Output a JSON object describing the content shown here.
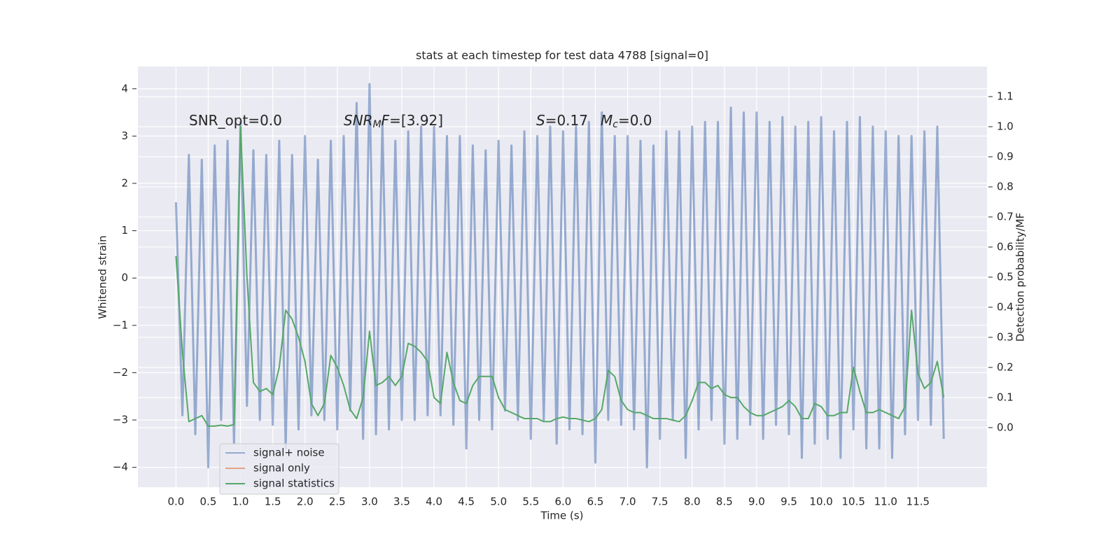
{
  "chart_data": {
    "type": "line",
    "title": "stats at each timestep for test data 4788 [signal=0]",
    "xlabel": "Time (s)",
    "ylabel": "Whitened strain",
    "y2label": "Detection probability/MF",
    "x": [
      0,
      0.1,
      0.2,
      0.3,
      0.4,
      0.5,
      0.6,
      0.7,
      0.8,
      0.9,
      1,
      1.1,
      1.2,
      1.3,
      1.4,
      1.5,
      1.6,
      1.7,
      1.8,
      1.9,
      2,
      2.1,
      2.2,
      2.3,
      2.4,
      2.5,
      2.6,
      2.7,
      2.8,
      2.9,
      3,
      3.1,
      3.2,
      3.3,
      3.4,
      3.5,
      3.6,
      3.7,
      3.8,
      3.9,
      4,
      4.1,
      4.2,
      4.3,
      4.4,
      4.5,
      4.6,
      4.7,
      4.8,
      4.9,
      5,
      5.1,
      5.2,
      5.3,
      5.4,
      5.5,
      5.6,
      5.7,
      5.8,
      5.9,
      6,
      6.1,
      6.2,
      6.3,
      6.4,
      6.5,
      6.6,
      6.7,
      6.8,
      6.9,
      7,
      7.1,
      7.2,
      7.3,
      7.4,
      7.5,
      7.6,
      7.7,
      7.8,
      7.9,
      8,
      8.1,
      8.2,
      8.3,
      8.4,
      8.5,
      8.6,
      8.7,
      8.8,
      8.9,
      9,
      9.1,
      9.2,
      9.3,
      9.4,
      9.5,
      9.6,
      9.7,
      9.8,
      9.9,
      10,
      10.1,
      10.2,
      10.3,
      10.4,
      10.5,
      10.6,
      10.7,
      10.8,
      10.9,
      11,
      11.1,
      11.2,
      11.3,
      11.4,
      11.5,
      11.6,
      11.7,
      11.8,
      11.9
    ],
    "series": [
      {
        "name": "signal+ noise",
        "color": "#4c72b0",
        "opacity": 0.55,
        "values": [
          1.6,
          -2.9,
          2.6,
          -3.3,
          2.5,
          -4.0,
          2.8,
          -3.0,
          2.9,
          -3.5,
          3.3,
          -2.7,
          2.7,
          -3.0,
          2.6,
          -3.1,
          2.9,
          -3.6,
          2.6,
          -3.2,
          3.0,
          -2.9,
          2.5,
          -3.0,
          2.9,
          -3.2,
          3.0,
          -2.8,
          3.7,
          -3.4,
          4.1,
          -3.3,
          3.3,
          -3.2,
          2.9,
          -3.0,
          3.1,
          -3.0,
          3.2,
          -2.9,
          3.2,
          -2.9,
          3.0,
          -3.1,
          3.0,
          -3.6,
          2.8,
          -3.0,
          2.7,
          -3.2,
          2.9,
          -2.8,
          2.8,
          -3.0,
          3.1,
          -3.4,
          3.0,
          -3.0,
          3.2,
          -3.5,
          3.1,
          -3.2,
          3.2,
          -3.3,
          3.3,
          -3.9,
          3.5,
          -3.0,
          3.0,
          -3.1,
          3.0,
          -3.2,
          2.9,
          -4.0,
          2.8,
          -3.4,
          3.1,
          -3.0,
          3.1,
          -3.8,
          3.2,
          -3.2,
          3.3,
          -3.0,
          3.3,
          -3.5,
          3.6,
          -3.4,
          3.5,
          -3.1,
          3.5,
          -3.4,
          3.3,
          -3.1,
          3.4,
          -3.3,
          3.2,
          -3.8,
          3.3,
          -3.5,
          3.4,
          -3.4,
          3.1,
          -3.8,
          3.3,
          -3.2,
          3.4,
          -3.6,
          3.2,
          -3.6,
          3.1,
          -3.8,
          3.0,
          -3.3,
          3.0,
          -3.0,
          3.1,
          -3.1,
          3.2,
          -3.4
        ]
      },
      {
        "name": "signal only",
        "color": "#dd8452",
        "opacity": 1,
        "values": [
          null,
          null,
          null,
          null,
          null,
          null,
          null,
          null,
          null,
          null,
          null,
          null,
          null,
          null,
          null,
          null,
          null,
          null,
          null,
          null,
          null,
          null,
          null,
          null,
          null,
          null,
          null,
          null,
          null,
          null,
          null,
          null,
          null,
          null,
          null,
          null,
          null,
          null,
          null,
          null,
          null,
          null,
          null,
          null,
          null,
          null,
          null,
          null,
          null,
          null,
          null,
          null,
          null,
          null,
          null,
          null,
          null,
          null,
          null,
          null,
          null,
          null,
          null,
          null,
          null,
          null,
          null,
          null,
          null,
          null,
          null,
          null,
          null,
          null,
          null,
          null,
          null,
          null,
          null,
          null,
          null,
          null,
          null,
          null,
          null,
          null,
          null,
          null,
          null,
          null,
          null,
          null,
          null,
          null,
          null,
          null,
          null,
          null,
          null,
          null,
          null,
          null,
          null,
          null,
          null,
          null,
          null,
          null,
          null,
          null,
          null,
          null,
          null,
          null,
          null,
          null,
          null,
          null,
          null,
          null
        ]
      },
      {
        "name": "signal statistics",
        "color": "#55a868",
        "opacity": 1,
        "axis": "y2",
        "values": [
          0.57,
          0.25,
          0.02,
          0.03,
          0.04,
          0.005,
          0.005,
          0.008,
          0.005,
          0.01,
          1.0,
          0.5,
          0.15,
          0.12,
          0.13,
          0.11,
          0.2,
          0.39,
          0.36,
          0.3,
          0.22,
          0.08,
          0.04,
          0.08,
          0.24,
          0.2,
          0.14,
          0.06,
          0.03,
          0.1,
          0.32,
          0.14,
          0.15,
          0.17,
          0.14,
          0.17,
          0.28,
          0.27,
          0.25,
          0.22,
          0.1,
          0.08,
          0.25,
          0.15,
          0.09,
          0.08,
          0.14,
          0.17,
          0.17,
          0.17,
          0.1,
          0.06,
          0.05,
          0.04,
          0.03,
          0.03,
          0.03,
          0.02,
          0.02,
          0.03,
          0.035,
          0.03,
          0.03,
          0.025,
          0.02,
          0.03,
          0.06,
          0.19,
          0.17,
          0.09,
          0.06,
          0.05,
          0.05,
          0.04,
          0.03,
          0.03,
          0.03,
          0.025,
          0.02,
          0.04,
          0.09,
          0.15,
          0.15,
          0.13,
          0.14,
          0.11,
          0.1,
          0.1,
          0.07,
          0.05,
          0.04,
          0.04,
          0.05,
          0.06,
          0.07,
          0.09,
          0.07,
          0.03,
          0.03,
          0.08,
          0.07,
          0.04,
          0.04,
          0.05,
          0.05,
          0.2,
          0.12,
          0.05,
          0.05,
          0.06,
          0.05,
          0.04,
          0.03,
          0.07,
          0.39,
          0.18,
          0.13,
          0.15,
          0.22,
          0.1
        ]
      }
    ],
    "xlim": [
      -0.59,
      12.57
    ],
    "xticks": [
      {
        "value": 0,
        "label": "0.0"
      },
      0.5,
      {
        "value": 1,
        "label": "1.0"
      },
      1.5,
      {
        "value": 2,
        "label": "2.0"
      },
      2.5,
      {
        "value": 3,
        "label": "3.0"
      },
      3.5,
      {
        "value": 4,
        "label": "4.0"
      },
      4.5,
      {
        "value": 5,
        "label": "5.0"
      },
      5.5,
      {
        "value": 6,
        "label": "6.0"
      },
      6.5,
      {
        "value": 7,
        "label": "7.0"
      },
      7.5,
      {
        "value": 8,
        "label": "8.0"
      },
      8.5,
      {
        "value": 9,
        "label": "9.0"
      },
      9.5,
      {
        "value": 10,
        "label": "10.0"
      },
      10.5,
      {
        "value": 11,
        "label": "11.0"
      },
      11.5
    ],
    "ylim": [
      -4.42,
      4.47
    ],
    "yticks": [
      4,
      3,
      2,
      1,
      0,
      {
        "value": -1,
        "label": "−1"
      },
      {
        "value": -2,
        "label": "−2"
      },
      {
        "value": -3,
        "label": "−3"
      },
      {
        "value": -4,
        "label": "−4"
      }
    ],
    "y2lim": [
      -0.198,
      1.2
    ],
    "y2ticks": [
      {
        "value": 0,
        "label": "0.0"
      },
      0.1,
      0.2,
      0.3,
      0.4,
      0.5,
      0.6,
      0.7,
      0.8,
      0.9,
      {
        "value": 1,
        "label": "1.0"
      },
      1.1
    ],
    "grid": true,
    "legend": "lower left",
    "annotations": [
      {
        "parts": [
          {
            "text": "SNR_opt=0.0"
          }
        ]
      },
      {
        "parts": [
          {
            "text": "SNR",
            "style": "italic"
          },
          {
            "text": "M",
            "style": "sub"
          },
          {
            "text": "F",
            "style": "italic"
          },
          {
            "text": "=[3.92]"
          }
        ]
      },
      {
        "parts": [
          {
            "text": "S",
            "style": "italic"
          },
          {
            "text": "=0.17"
          }
        ]
      },
      {
        "parts": [
          {
            "text": "M",
            "style": "italic"
          },
          {
            "text": "c",
            "style": "sub"
          },
          {
            "text": "=0.0"
          }
        ]
      }
    ]
  }
}
